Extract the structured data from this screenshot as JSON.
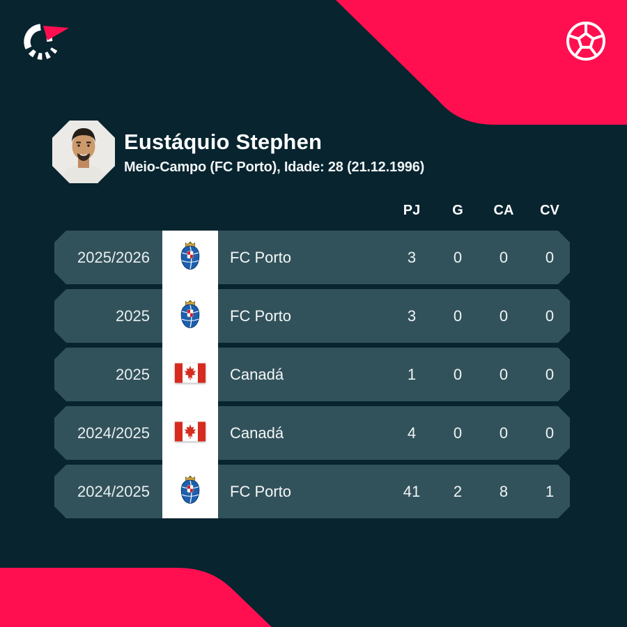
{
  "card": {
    "brand": {
      "name": "Flashscore"
    },
    "player": {
      "name": "Eustáquio Stephen",
      "meta": "Meio-Campo (FC Porto), Idade: 28 (21.12.1996)"
    },
    "table": {
      "columns": [
        "PJ",
        "G",
        "CA",
        "CV"
      ],
      "rows": [
        {
          "season": "2025/2026",
          "badge": "fc-porto",
          "team": "FC Porto",
          "stats": [
            "3",
            "0",
            "0",
            "0"
          ]
        },
        {
          "season": "2025",
          "badge": "fc-porto",
          "team": "FC Porto",
          "stats": [
            "3",
            "0",
            "0",
            "0"
          ]
        },
        {
          "season": "2025",
          "badge": "canada",
          "team": "Canadá",
          "stats": [
            "1",
            "0",
            "0",
            "0"
          ]
        },
        {
          "season": "2024/2025",
          "badge": "canada",
          "team": "Canadá",
          "stats": [
            "4",
            "0",
            "0",
            "0"
          ]
        },
        {
          "season": "2024/2025",
          "badge": "fc-porto",
          "team": "FC Porto",
          "stats": [
            "41",
            "2",
            "8",
            "1"
          ]
        }
      ]
    },
    "colors": {
      "background": "#07242f",
      "row": "#32525b",
      "accent": "#ff0f50",
      "white": "#ffffff"
    }
  }
}
